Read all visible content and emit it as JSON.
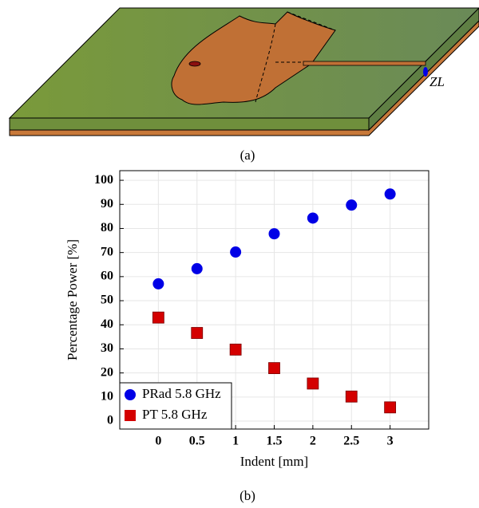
{
  "diagram": {
    "caption": "(a)",
    "port_label": "ZL"
  },
  "chart_data": {
    "type": "scatter",
    "caption": "(b)",
    "x_label": "Indent [mm]",
    "y_label": "Percentage Power [%]",
    "x": [
      0,
      0.5,
      1,
      1.5,
      2,
      2.5,
      3
    ],
    "series": [
      {
        "name": "PRad 5.8 GHz",
        "color": "#0000e6",
        "marker": "circle",
        "values": [
          57,
          63.3,
          70.2,
          77.8,
          84.3,
          89.7,
          94.3
        ]
      },
      {
        "name": "PT 5.8 GHz",
        "color": "#d40000",
        "marker": "square",
        "values": [
          43,
          36.6,
          29.7,
          22,
          15.6,
          10.2,
          5.7
        ]
      }
    ],
    "xlim": [
      -0.5,
      3.5
    ],
    "ylim": [
      -3.3,
      104
    ],
    "xticks": [
      0,
      0.5,
      1,
      1.5,
      2,
      2.5,
      3
    ],
    "yticks": [
      0,
      10,
      20,
      30,
      40,
      50,
      60,
      70,
      80,
      90,
      100
    ],
    "grid": true,
    "legend": "lower-left"
  }
}
